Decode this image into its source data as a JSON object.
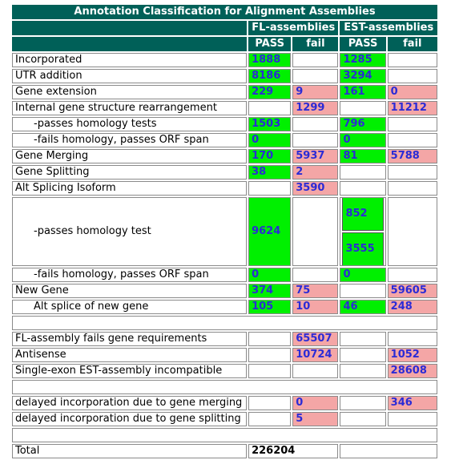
{
  "title": "Annotation Classification for Alignment Assemblies",
  "group_headers": [
    "FL-assemblies",
    "EST-assemblies"
  ],
  "sub_headers": [
    "PASS",
    "fail",
    "PASS",
    "fail"
  ],
  "rows": [
    {
      "label": "Incorporated",
      "fl_pass": "1888",
      "fl_fail": "",
      "est_pass": "1285",
      "est_fail": ""
    },
    {
      "label": "UTR addition",
      "fl_pass": "8186",
      "fl_fail": "",
      "est_pass": "3294",
      "est_fail": ""
    },
    {
      "label": "Gene extension",
      "fl_pass": "229",
      "fl_fail": "9",
      "est_pass": "161",
      "est_fail": "0"
    },
    {
      "label": "Internal gene structure rearrangement",
      "fl_pass": "",
      "fl_fail": "1299",
      "est_pass": "",
      "est_fail": "11212"
    },
    {
      "label": "-passes homology tests",
      "fl_pass": "1503",
      "fl_fail": "",
      "est_pass": "796",
      "est_fail": ""
    },
    {
      "label": "-fails homology, passes ORF span",
      "fl_pass": "0",
      "fl_fail": "",
      "est_pass": "0",
      "est_fail": ""
    },
    {
      "label": "Gene Merging",
      "fl_pass": "170",
      "fl_fail": "5937",
      "est_pass": "81",
      "est_fail": "5788"
    },
    {
      "label": "Gene Splitting",
      "fl_pass": "38",
      "fl_fail": "2",
      "est_pass": "",
      "est_fail": ""
    },
    {
      "label": "Alt Splicing Isoform",
      "fl_pass": "",
      "fl_fail": "3590",
      "est_pass": "",
      "est_fail": ""
    },
    {
      "label": "-passes homology test",
      "fl_pass": "9624",
      "fl_fail": "",
      "est_pass": [
        "852",
        "3555"
      ],
      "est_fail": ""
    },
    {
      "label": "-fails homology, passes ORF span",
      "fl_pass": "0",
      "fl_fail": "",
      "est_pass": "0",
      "est_fail": ""
    },
    {
      "label": "New Gene",
      "fl_pass": "374",
      "fl_fail": "75",
      "est_pass": "",
      "est_fail": "59605"
    },
    {
      "label": "Alt splice of new gene",
      "fl_pass": "105",
      "fl_fail": "10",
      "est_pass": "46",
      "est_fail": "248"
    },
    {
      "label": "FL-assembly fails gene requirements",
      "fl_pass": "",
      "fl_fail": "65507",
      "est_pass": "",
      "est_fail": ""
    },
    {
      "label": "Antisense",
      "fl_pass": "",
      "fl_fail": "10724",
      "est_pass": "",
      "est_fail": "1052"
    },
    {
      "label": "Single-exon EST-assembly incompatible",
      "fl_pass": "",
      "fl_fail": "",
      "est_pass": "",
      "est_fail": "28608"
    },
    {
      "label": "delayed incorporation due to gene merging",
      "fl_pass": "",
      "fl_fail": "0",
      "est_pass": "",
      "est_fail": "346"
    },
    {
      "label": "delayed incorporation due to gene splitting",
      "fl_pass": "",
      "fl_fail": "5",
      "est_pass": "",
      "est_fail": ""
    }
  ],
  "total": {
    "label": "Total",
    "value": "226204"
  },
  "colors": {
    "header_bg": "#006058",
    "pass_bg": "#00f000",
    "fail_bg": "#f4a6a6",
    "value_text": "#2b2bd6"
  }
}
